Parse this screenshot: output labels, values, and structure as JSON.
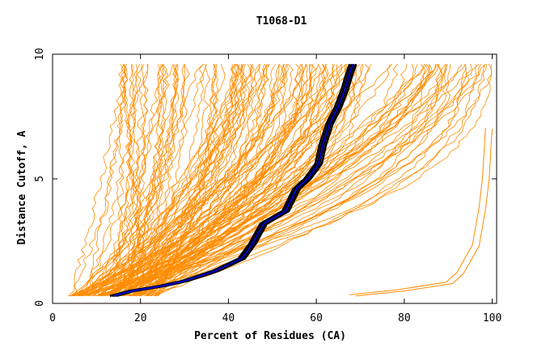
{
  "chart_data": {
    "type": "line",
    "title": "T1068-D1",
    "xlabel": "Percent of Residues (CA)",
    "ylabel": "Distance Cutoff, A",
    "xlim": [
      0,
      101
    ],
    "ylim": [
      0,
      10
    ],
    "xticks": [
      "0",
      "20",
      "40",
      "60",
      "80",
      "100"
    ],
    "yticks": [
      "0",
      "5",
      "10"
    ],
    "grid": false,
    "legend": "none",
    "colors": {
      "models": "#ff8c00",
      "highlight": "#0000cc",
      "highlight_edge": "#000000"
    },
    "series": [
      {
        "role": "highlight",
        "values": [
          [
            13.8,
            0.3
          ],
          [
            18,
            0.5
          ],
          [
            25,
            0.7
          ],
          [
            30,
            0.9
          ],
          [
            37,
            1.3
          ],
          [
            43,
            1.8
          ],
          [
            45.5,
            2.4
          ],
          [
            48,
            3.2
          ],
          [
            53,
            3.7
          ],
          [
            55.5,
            4.6
          ],
          [
            58,
            5.0
          ],
          [
            60.5,
            5.6
          ],
          [
            61.5,
            6.4
          ],
          [
            63,
            7.2
          ],
          [
            65,
            7.9
          ],
          [
            66.5,
            8.6
          ],
          [
            67.5,
            9.2
          ],
          [
            68.3,
            9.6
          ]
        ]
      },
      {
        "role": "outlier",
        "values": [
          [
            69,
            0.3
          ],
          [
            80,
            0.5
          ],
          [
            91,
            0.8
          ],
          [
            93.5,
            1.2
          ],
          [
            97,
            2.3
          ],
          [
            98.5,
            3.8
          ],
          [
            99.3,
            5.0
          ],
          [
            99.8,
            6.5
          ],
          [
            100,
            7.0
          ]
        ]
      }
    ],
    "model_family": {
      "count": 150,
      "note": "unlabeled orange per-model curves (GDT plots), generated procedurally",
      "y_start": 0.3,
      "y_end": 9.6
    }
  }
}
